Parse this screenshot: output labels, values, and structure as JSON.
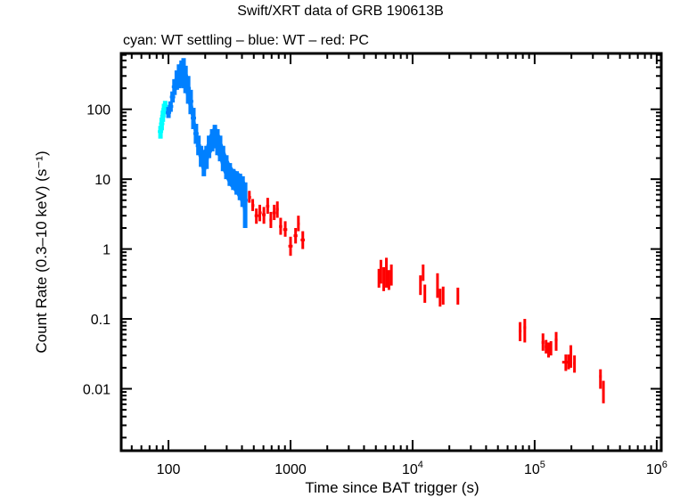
{
  "chart_data": {
    "type": "scatter",
    "title": "Swift/XRT data of GRB 190613B",
    "subtitle": "cyan: WT settling – blue: WT – red: PC",
    "xlabel": "Time since BAT trigger (s)",
    "ylabel": "Count Rate (0.3–10 keV) (s⁻¹)",
    "xscale": "log",
    "yscale": "log",
    "xlim": [
      41,
      1090000
    ],
    "ylim": [
      0.0013,
      630
    ],
    "grid": false,
    "x_ticks": [
      {
        "value": 100,
        "label": "100"
      },
      {
        "value": 1000,
        "label": "1000"
      },
      {
        "value": 10000,
        "label": "10⁴"
      },
      {
        "value": 100000,
        "label": "10⁵"
      },
      {
        "value": 1000000,
        "label": "10⁶"
      }
    ],
    "y_ticks": [
      {
        "value": 100,
        "label": "100"
      },
      {
        "value": 10,
        "label": "10"
      },
      {
        "value": 1,
        "label": "1"
      },
      {
        "value": 0.1,
        "label": "0.1"
      },
      {
        "value": 0.01,
        "label": "0.01"
      }
    ],
    "series": [
      {
        "name": "WT settling",
        "color": "#00ffff",
        "points": [
          {
            "t": 86,
            "rate": 48,
            "lo": 38,
            "hi": 58
          },
          {
            "t": 88,
            "rate": 62,
            "lo": 50,
            "hi": 76
          },
          {
            "t": 90,
            "rate": 80,
            "lo": 66,
            "hi": 96
          },
          {
            "t": 92,
            "rate": 100,
            "lo": 84,
            "hi": 120
          },
          {
            "t": 94,
            "rate": 112,
            "lo": 95,
            "hi": 132
          }
        ]
      },
      {
        "name": "WT",
        "color": "#0080ff",
        "points": [
          {
            "t": 100,
            "rate": 90,
            "lo": 75,
            "hi": 108
          },
          {
            "t": 104,
            "rate": 110,
            "lo": 92,
            "hi": 130
          },
          {
            "t": 108,
            "rate": 150,
            "lo": 125,
            "hi": 180
          },
          {
            "t": 112,
            "rate": 210,
            "lo": 160,
            "hi": 270
          },
          {
            "t": 117,
            "rate": 260,
            "lo": 190,
            "hi": 360
          },
          {
            "t": 122,
            "rate": 300,
            "lo": 200,
            "hi": 440
          },
          {
            "t": 128,
            "rate": 330,
            "lo": 210,
            "hi": 500
          },
          {
            "t": 133,
            "rate": 320,
            "lo": 200,
            "hi": 540
          },
          {
            "t": 138,
            "rate": 280,
            "lo": 170,
            "hi": 420
          },
          {
            "t": 145,
            "rate": 200,
            "lo": 120,
            "hi": 300
          },
          {
            "t": 152,
            "rate": 130,
            "lo": 85,
            "hi": 190
          },
          {
            "t": 160,
            "rate": 75,
            "lo": 52,
            "hi": 105
          },
          {
            "t": 168,
            "rate": 45,
            "lo": 32,
            "hi": 62
          },
          {
            "t": 176,
            "rate": 30,
            "lo": 22,
            "hi": 42
          },
          {
            "t": 185,
            "rate": 22,
            "lo": 15,
            "hi": 30
          },
          {
            "t": 195,
            "rate": 18,
            "lo": 11,
            "hi": 26
          },
          {
            "t": 205,
            "rate": 22,
            "lo": 14,
            "hi": 30
          },
          {
            "t": 215,
            "rate": 30,
            "lo": 20,
            "hi": 42
          },
          {
            "t": 228,
            "rate": 38,
            "lo": 25,
            "hi": 52
          },
          {
            "t": 240,
            "rate": 42,
            "lo": 28,
            "hi": 60
          },
          {
            "t": 252,
            "rate": 35,
            "lo": 22,
            "hi": 52
          },
          {
            "t": 265,
            "rate": 28,
            "lo": 18,
            "hi": 42
          },
          {
            "t": 280,
            "rate": 20,
            "lo": 13,
            "hi": 30
          },
          {
            "t": 298,
            "rate": 15,
            "lo": 10,
            "hi": 22
          },
          {
            "t": 318,
            "rate": 12,
            "lo": 8,
            "hi": 17
          },
          {
            "t": 340,
            "rate": 10,
            "lo": 7,
            "hi": 14
          },
          {
            "t": 362,
            "rate": 9,
            "lo": 6,
            "hi": 13
          },
          {
            "t": 385,
            "rate": 8,
            "lo": 5,
            "hi": 12
          },
          {
            "t": 405,
            "rate": 6.5,
            "lo": 4,
            "hi": 11
          },
          {
            "t": 425,
            "rate": 5,
            "lo": 2,
            "hi": 9
          }
        ]
      },
      {
        "name": "PC",
        "color": "#ff0000",
        "points": [
          {
            "t": 460,
            "t_lo": 450,
            "t_hi": 475,
            "rate": 5.5,
            "lo": 4.6,
            "hi": 6.8
          },
          {
            "t": 490,
            "t_lo": 478,
            "t_hi": 505,
            "rate": 4.2,
            "lo": 3.5,
            "hi": 5.2
          },
          {
            "t": 525,
            "t_lo": 508,
            "t_hi": 545,
            "rate": 3.0,
            "lo": 2.3,
            "hi": 3.8
          },
          {
            "t": 560,
            "t_lo": 545,
            "t_hi": 580,
            "rate": 3.3,
            "lo": 2.5,
            "hi": 4.3
          },
          {
            "t": 605,
            "t_lo": 585,
            "t_hi": 625,
            "rate": 3.1,
            "lo": 2.3,
            "hi": 4.0
          },
          {
            "t": 650,
            "t_lo": 630,
            "t_hi": 670,
            "rate": 4.1,
            "lo": 3.2,
            "hi": 5.4
          },
          {
            "t": 690,
            "t_lo": 672,
            "t_hi": 708,
            "rate": 2.6,
            "lo": 2.0,
            "hi": 3.4
          },
          {
            "t": 735,
            "t_lo": 712,
            "t_hi": 758,
            "rate": 3.3,
            "lo": 2.6,
            "hi": 4.3
          },
          {
            "t": 780,
            "t_lo": 760,
            "t_hi": 800,
            "rate": 3.7,
            "lo": 2.8,
            "hi": 4.8
          },
          {
            "t": 830,
            "t_lo": 805,
            "t_hi": 855,
            "rate": 2.1,
            "lo": 1.6,
            "hi": 2.8
          },
          {
            "t": 905,
            "t_lo": 870,
            "t_hi": 940,
            "rate": 1.9,
            "lo": 1.5,
            "hi": 2.5
          },
          {
            "t": 1000,
            "t_lo": 960,
            "t_hi": 1040,
            "rate": 1.1,
            "lo": 0.8,
            "hi": 1.5
          },
          {
            "t": 1100,
            "t_lo": 1060,
            "t_hi": 1140,
            "rate": 1.55,
            "lo": 1.2,
            "hi": 2.0
          },
          {
            "t": 1160,
            "t_lo": 1140,
            "t_hi": 1190,
            "rate": 2.3,
            "lo": 1.8,
            "hi": 3.0
          },
          {
            "t": 1260,
            "t_lo": 1210,
            "t_hi": 1310,
            "rate": 1.35,
            "lo": 1.0,
            "hi": 1.8
          },
          {
            "t": 5300,
            "t_lo": 5200,
            "t_hi": 5400,
            "rate": 0.38,
            "lo": 0.28,
            "hi": 0.52
          },
          {
            "t": 5500,
            "t_lo": 5400,
            "t_hi": 5600,
            "rate": 0.45,
            "lo": 0.32,
            "hi": 0.7
          },
          {
            "t": 5800,
            "t_lo": 5700,
            "t_hi": 5900,
            "rate": 0.37,
            "lo": 0.25,
            "hi": 0.55
          },
          {
            "t": 6100,
            "t_lo": 6000,
            "t_hi": 6200,
            "rate": 0.41,
            "lo": 0.28,
            "hi": 0.75
          },
          {
            "t": 6400,
            "t_lo": 6300,
            "t_hi": 6500,
            "rate": 0.35,
            "lo": 0.26,
            "hi": 0.5
          },
          {
            "t": 6700,
            "t_lo": 6600,
            "t_hi": 6800,
            "rate": 0.4,
            "lo": 0.3,
            "hi": 0.6
          },
          {
            "t": 11600,
            "t_lo": 11400,
            "t_hi": 11800,
            "rate": 0.31,
            "lo": 0.22,
            "hi": 0.42
          },
          {
            "t": 12200,
            "t_lo": 12000,
            "t_hi": 12400,
            "rate": 0.46,
            "lo": 0.35,
            "hi": 0.6
          },
          {
            "t": 12600,
            "t_lo": 12400,
            "t_hi": 12800,
            "rate": 0.23,
            "lo": 0.17,
            "hi": 0.31
          },
          {
            "t": 16000,
            "t_lo": 15700,
            "t_hi": 16300,
            "rate": 0.31,
            "lo": 0.2,
            "hi": 0.45
          },
          {
            "t": 16800,
            "t_lo": 16500,
            "t_hi": 17100,
            "rate": 0.2,
            "lo": 0.15,
            "hi": 0.27
          },
          {
            "t": 17800,
            "t_lo": 17500,
            "t_hi": 18100,
            "rate": 0.22,
            "lo": 0.16,
            "hi": 0.29
          },
          {
            "t": 23500,
            "t_lo": 23000,
            "t_hi": 24000,
            "rate": 0.21,
            "lo": 0.16,
            "hi": 0.28
          },
          {
            "t": 76000,
            "t_lo": 74000,
            "t_hi": 78000,
            "rate": 0.067,
            "lo": 0.048,
            "hi": 0.09
          },
          {
            "t": 83000,
            "t_lo": 81000,
            "t_hi": 85000,
            "rate": 0.075,
            "lo": 0.046,
            "hi": 0.1
          },
          {
            "t": 117000,
            "t_lo": 114000,
            "t_hi": 120000,
            "rate": 0.046,
            "lo": 0.035,
            "hi": 0.062
          },
          {
            "t": 124000,
            "t_lo": 121000,
            "t_hi": 127000,
            "rate": 0.04,
            "lo": 0.032,
            "hi": 0.05
          },
          {
            "t": 130000,
            "t_lo": 127000,
            "t_hi": 133000,
            "rate": 0.036,
            "lo": 0.028,
            "hi": 0.046
          },
          {
            "t": 136000,
            "t_lo": 133000,
            "t_hi": 139000,
            "rate": 0.038,
            "lo": 0.03,
            "hi": 0.048
          },
          {
            "t": 150000,
            "t_lo": 146000,
            "t_hi": 154000,
            "rate": 0.05,
            "lo": 0.035,
            "hi": 0.065
          },
          {
            "t": 180000,
            "t_lo": 168000,
            "t_hi": 192000,
            "rate": 0.024,
            "lo": 0.018,
            "hi": 0.031
          },
          {
            "t": 190000,
            "t_lo": 185000,
            "t_hi": 195000,
            "rate": 0.024,
            "lo": 0.019,
            "hi": 0.031
          },
          {
            "t": 198000,
            "t_lo": 194000,
            "t_hi": 202000,
            "rate": 0.028,
            "lo": 0.02,
            "hi": 0.042
          },
          {
            "t": 212000,
            "t_lo": 207000,
            "t_hi": 217000,
            "rate": 0.023,
            "lo": 0.017,
            "hi": 0.03
          },
          {
            "t": 346000,
            "t_lo": 338000,
            "t_hi": 354000,
            "rate": 0.015,
            "lo": 0.01,
            "hi": 0.019
          },
          {
            "t": 366000,
            "t_lo": 358000,
            "t_hi": 374000,
            "rate": 0.0097,
            "lo": 0.0062,
            "hi": 0.013
          }
        ]
      }
    ]
  }
}
